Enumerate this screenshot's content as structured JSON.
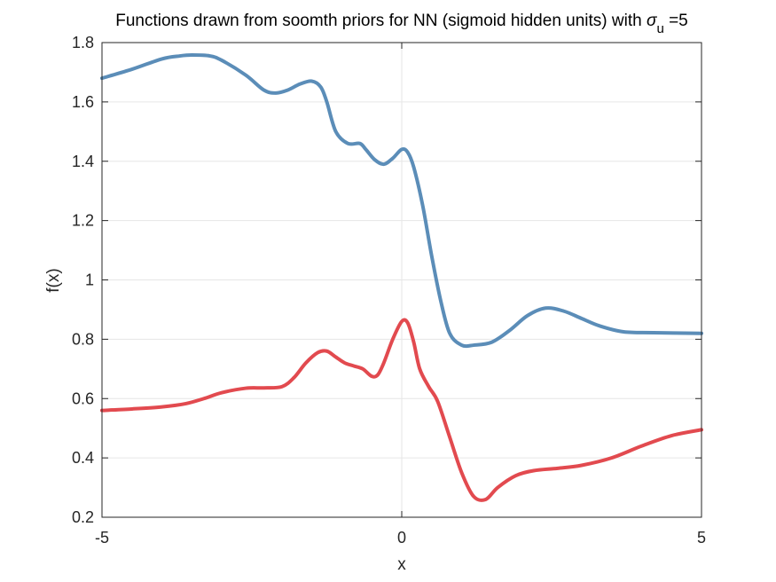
{
  "chart_data": {
    "type": "line",
    "title": {
      "main": "Functions drawn from soomth priors for NN (sigmoid hidden units) with",
      "symbol": "σ",
      "subscript": "u",
      "suffix": " =5"
    },
    "xlabel": "x",
    "ylabel": "f(x)",
    "xlim": [
      -5,
      5
    ],
    "ylim": [
      0.2,
      1.8
    ],
    "xticks": [
      -5,
      0,
      5
    ],
    "yticks": [
      0.2,
      0.4,
      0.6,
      0.8,
      1.0,
      1.2,
      1.4,
      1.6,
      1.8
    ],
    "xtick_labels": [
      "-5",
      "0",
      "5"
    ],
    "ytick_labels": [
      "0.2",
      "0.4",
      "0.6",
      "0.8",
      "1",
      "1.2",
      "1.4",
      "1.6",
      "1.8"
    ],
    "grid": true,
    "series": [
      {
        "name": "blue",
        "color": "#5b8db8",
        "x": [
          -5.0,
          -4.5,
          -4.0,
          -3.7,
          -3.5,
          -3.2,
          -3.0,
          -2.6,
          -2.3,
          -2.1,
          -1.9,
          -1.7,
          -1.5,
          -1.35,
          -1.25,
          -1.1,
          -0.9,
          -0.7,
          -0.6,
          -0.45,
          -0.3,
          -0.15,
          0.0,
          0.1,
          0.2,
          0.35,
          0.5,
          0.65,
          0.8,
          1.0,
          1.2,
          1.5,
          1.8,
          2.1,
          2.4,
          2.7,
          3.0,
          3.3,
          3.7,
          4.2,
          5.0
        ],
        "y": [
          1.68,
          1.71,
          1.745,
          1.755,
          1.758,
          1.755,
          1.74,
          1.69,
          1.64,
          1.63,
          1.64,
          1.66,
          1.67,
          1.65,
          1.6,
          1.5,
          1.46,
          1.46,
          1.44,
          1.405,
          1.39,
          1.41,
          1.44,
          1.43,
          1.38,
          1.25,
          1.08,
          0.93,
          0.82,
          0.78,
          0.78,
          0.79,
          0.83,
          0.88,
          0.905,
          0.895,
          0.87,
          0.845,
          0.825,
          0.822,
          0.82
        ]
      },
      {
        "name": "red",
        "color": "#e24a4f",
        "x": [
          -5.0,
          -4.5,
          -4.0,
          -3.6,
          -3.3,
          -3.0,
          -2.6,
          -2.3,
          -2.0,
          -1.8,
          -1.6,
          -1.4,
          -1.25,
          -1.1,
          -0.95,
          -0.8,
          -0.65,
          -0.5,
          -0.4,
          -0.3,
          -0.15,
          0.0,
          0.1,
          0.2,
          0.3,
          0.45,
          0.6,
          0.8,
          1.0,
          1.2,
          1.4,
          1.6,
          1.9,
          2.2,
          2.6,
          3.0,
          3.5,
          4.0,
          4.5,
          5.0
        ],
        "y": [
          0.56,
          0.565,
          0.572,
          0.583,
          0.6,
          0.62,
          0.635,
          0.636,
          0.64,
          0.67,
          0.72,
          0.755,
          0.76,
          0.74,
          0.72,
          0.71,
          0.7,
          0.675,
          0.68,
          0.72,
          0.8,
          0.86,
          0.855,
          0.79,
          0.7,
          0.64,
          0.59,
          0.47,
          0.35,
          0.27,
          0.26,
          0.3,
          0.34,
          0.357,
          0.365,
          0.375,
          0.4,
          0.44,
          0.475,
          0.495
        ]
      }
    ]
  }
}
